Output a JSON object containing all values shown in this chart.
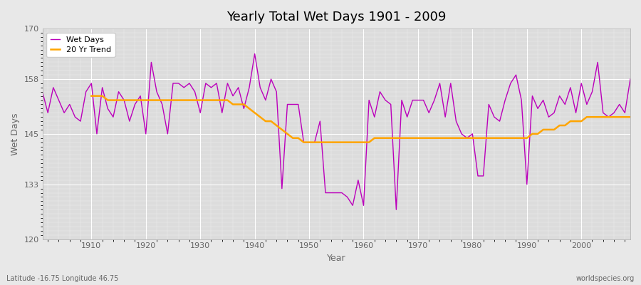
{
  "title": "Yearly Total Wet Days 1901 - 2009",
  "xlabel": "Year",
  "ylabel": "Wet Days",
  "ylim": [
    120,
    170
  ],
  "xlim": [
    1901,
    2009
  ],
  "yticks": [
    120,
    133,
    145,
    158,
    170
  ],
  "xticks": [
    1910,
    1920,
    1930,
    1940,
    1950,
    1960,
    1970,
    1980,
    1990,
    2000
  ],
  "wet_days_color": "#BB00BB",
  "trend_color": "#FFA500",
  "bg_color": "#E8E8E8",
  "plot_bg_color": "#DCDCDC",
  "subtitle_left": "Latitude -16.75 Longitude 46.75",
  "subtitle_right": "worldspecies.org",
  "legend_labels": [
    "Wet Days",
    "20 Yr Trend"
  ],
  "years": [
    1901,
    1902,
    1903,
    1904,
    1905,
    1906,
    1907,
    1908,
    1909,
    1910,
    1911,
    1912,
    1913,
    1914,
    1915,
    1916,
    1917,
    1918,
    1919,
    1920,
    1921,
    1922,
    1923,
    1924,
    1925,
    1926,
    1927,
    1928,
    1929,
    1930,
    1931,
    1932,
    1933,
    1934,
    1935,
    1936,
    1937,
    1938,
    1939,
    1940,
    1941,
    1942,
    1943,
    1944,
    1945,
    1946,
    1947,
    1948,
    1949,
    1950,
    1951,
    1952,
    1953,
    1954,
    1955,
    1956,
    1957,
    1958,
    1959,
    1960,
    1961,
    1962,
    1963,
    1964,
    1965,
    1966,
    1967,
    1968,
    1969,
    1970,
    1971,
    1972,
    1973,
    1974,
    1975,
    1976,
    1977,
    1978,
    1979,
    1980,
    1981,
    1982,
    1983,
    1984,
    1985,
    1986,
    1987,
    1988,
    1989,
    1990,
    1991,
    1992,
    1993,
    1994,
    1995,
    1996,
    1997,
    1998,
    1999,
    2000,
    2001,
    2002,
    2003,
    2004,
    2005,
    2006,
    2007,
    2008,
    2009
  ],
  "wet_days": [
    155,
    150,
    156,
    153,
    150,
    152,
    149,
    148,
    155,
    157,
    145,
    156,
    151,
    149,
    155,
    153,
    148,
    152,
    154,
    145,
    162,
    155,
    152,
    145,
    157,
    157,
    156,
    157,
    155,
    150,
    157,
    156,
    157,
    150,
    157,
    154,
    156,
    151,
    156,
    164,
    156,
    153,
    158,
    155,
    132,
    152,
    152,
    152,
    143,
    143,
    143,
    148,
    131,
    131,
    131,
    131,
    130,
    128,
    134,
    128,
    153,
    149,
    155,
    153,
    152,
    127,
    153,
    149,
    153,
    153,
    153,
    150,
    153,
    157,
    149,
    157,
    148,
    145,
    144,
    145,
    135,
    135,
    152,
    149,
    148,
    153,
    157,
    159,
    153,
    133,
    154,
    151,
    153,
    149,
    150,
    154,
    152,
    156,
    150,
    157,
    152,
    155,
    162,
    150,
    149,
    150,
    152,
    150,
    158
  ],
  "trend": [
    null,
    null,
    null,
    null,
    null,
    null,
    null,
    null,
    null,
    154,
    154,
    154,
    153,
    153,
    153,
    153,
    153,
    153,
    153,
    153,
    153,
    153,
    153,
    153,
    153,
    153,
    153,
    153,
    153,
    153,
    153,
    153,
    153,
    153,
    153,
    152,
    152,
    152,
    151,
    150,
    149,
    148,
    148,
    147,
    146,
    145,
    144,
    144,
    143,
    143,
    143,
    143,
    143,
    143,
    143,
    143,
    143,
    143,
    143,
    143,
    143,
    144,
    144,
    144,
    144,
    144,
    144,
    144,
    144,
    144,
    144,
    144,
    144,
    144,
    144,
    144,
    144,
    144,
    144,
    144,
    144,
    144,
    144,
    144,
    144,
    144,
    144,
    144,
    144,
    144,
    145,
    145,
    146,
    146,
    146,
    147,
    147,
    148,
    148,
    148,
    149,
    149,
    149,
    149,
    149,
    149,
    149,
    149,
    149
  ]
}
